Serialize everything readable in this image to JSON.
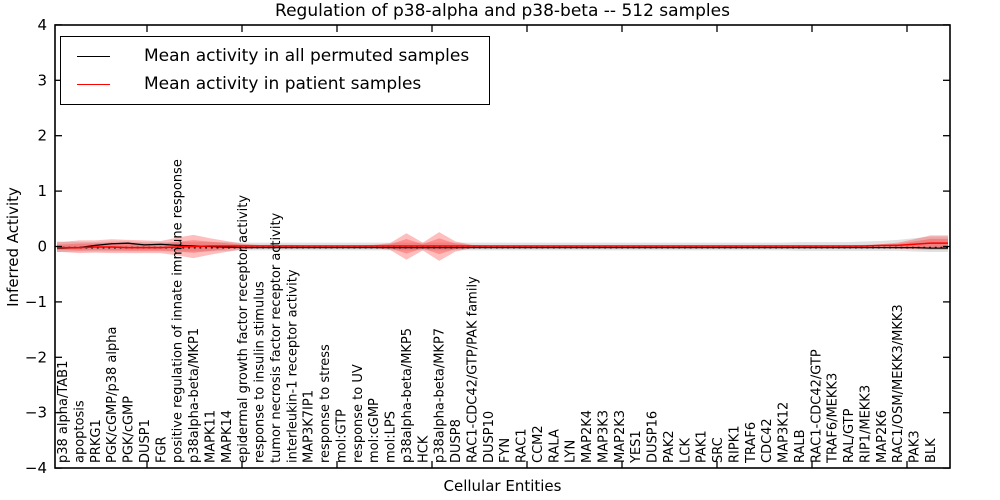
{
  "title": "Regulation of p38-alpha and p38-beta -- 512 samples",
  "chart_data": {
    "type": "line",
    "title": "Regulation of p38-alpha and p38-beta -- 512 samples",
    "xlabel": "Cellular Entities",
    "ylabel": "Inferred Activity",
    "ylim": [
      -4,
      4
    ],
    "yticks": [
      "4",
      "3",
      "2",
      "1",
      "0",
      "−1",
      "−2",
      "−3",
      "−4"
    ],
    "ytick_values": [
      4,
      3,
      2,
      1,
      0,
      -1,
      -2,
      -3,
      -4
    ],
    "grid": false,
    "legend_position": "upper left",
    "categories": [
      "p38 alpha/TAB1",
      "apoptosis",
      "PRKG1",
      "PGK/cGMP/p38 alpha",
      "PGK/cGMP",
      "DUSP1",
      "FGR",
      "positive regulation of innate immune response",
      "p38alpha-beta/MKP1",
      "MAPK11",
      "MAPK14",
      "epidermal growth factor receptor activity",
      "response to insulin stimulus",
      "tumor necrosis factor receptor activity",
      "interleukin-1 receptor activity",
      "MAP3K7IP1",
      "response to stress",
      "mol:GTP",
      "response to UV",
      "mol:cGMP",
      "mol:LPS",
      "p38alpha-beta/MKP5",
      "HCK",
      "p38alpha-beta/MKP7",
      "DUSP8",
      "RAC1-CDC42/GTP/PAK family",
      "DUSP10",
      "FYN",
      "RAC1",
      "CCM2",
      "RALA",
      "LYN",
      "MAP2K4",
      "MAP3K3",
      "MAP2K3",
      "YES1",
      "DUSP16",
      "PAK2",
      "LCK",
      "PAK1",
      "SRC",
      "RIPK1",
      "TRAF6",
      "CDC42",
      "MAP3K12",
      "RALB",
      "RAC1-CDC42/GTP",
      "TRAF6/MEKK3",
      "RAL/GTP",
      "RIP1/MEKK3",
      "MAP2K6",
      "RAC1/OSM/MEKK3/MKK3",
      "PAK3",
      "BLK"
    ],
    "series": [
      {
        "name": "Mean activity in all permuted samples",
        "color": "#000000",
        "style": "solid",
        "values": [
          -0.03,
          -0.02,
          0.02,
          0.05,
          0.06,
          0.03,
          0.04,
          0.02,
          0.01,
          0.0,
          -0.01,
          -0.02,
          -0.02,
          -0.02,
          -0.02,
          -0.02,
          -0.02,
          -0.02,
          -0.02,
          -0.02,
          -0.02,
          -0.02,
          -0.02,
          -0.02,
          -0.02,
          -0.02,
          -0.02,
          -0.02,
          -0.02,
          -0.02,
          -0.02,
          -0.02,
          -0.02,
          -0.02,
          -0.02,
          -0.02,
          -0.02,
          -0.02,
          -0.02,
          -0.02,
          -0.02,
          -0.02,
          -0.02,
          -0.02,
          -0.02,
          -0.02,
          -0.02,
          -0.02,
          -0.02,
          -0.02,
          -0.02,
          -0.02,
          -0.02,
          -0.03
        ]
      },
      {
        "name": "Mean activity in patient samples",
        "color": "#ff0000",
        "style": "solid",
        "values": [
          -0.02,
          -0.02,
          -0.01,
          -0.01,
          -0.02,
          -0.02,
          -0.02,
          -0.01,
          0.0,
          0.01,
          0.01,
          0.01,
          0.01,
          0.01,
          0.01,
          0.01,
          0.01,
          0.01,
          0.01,
          0.01,
          0.01,
          0.01,
          0.01,
          0.01,
          0.01,
          0.01,
          0.01,
          0.01,
          0.01,
          0.01,
          0.01,
          0.01,
          0.01,
          0.01,
          0.01,
          0.01,
          0.01,
          0.01,
          0.01,
          0.01,
          0.01,
          0.01,
          0.01,
          0.01,
          0.01,
          0.01,
          0.01,
          0.01,
          0.01,
          0.01,
          0.02,
          0.02,
          0.04,
          0.06
        ]
      }
    ],
    "bands": [
      {
        "name": "permuted-samples-range",
        "color": "rgba(70,70,70,0.16)",
        "upper": [
          0.09,
          0.08,
          0.08,
          0.09,
          0.09,
          0.08,
          0.08,
          0.08,
          0.08,
          0.08,
          0.08,
          0.07,
          0.07,
          0.07,
          0.07,
          0.07,
          0.07,
          0.07,
          0.07,
          0.07,
          0.07,
          0.07,
          0.07,
          0.07,
          0.07,
          0.07,
          0.07,
          0.07,
          0.07,
          0.07,
          0.07,
          0.07,
          0.07,
          0.07,
          0.07,
          0.07,
          0.07,
          0.07,
          0.07,
          0.07,
          0.07,
          0.07,
          0.07,
          0.07,
          0.07,
          0.08,
          0.08,
          0.08,
          0.08,
          0.09,
          0.1,
          0.12,
          0.15,
          0.18
        ],
        "lower": [
          -0.1,
          -0.09,
          -0.09,
          -0.09,
          -0.09,
          -0.09,
          -0.09,
          -0.09,
          -0.09,
          -0.09,
          -0.08,
          -0.07,
          -0.07,
          -0.07,
          -0.07,
          -0.07,
          -0.07,
          -0.07,
          -0.07,
          -0.07,
          -0.07,
          -0.07,
          -0.07,
          -0.07,
          -0.07,
          -0.07,
          -0.07,
          -0.07,
          -0.07,
          -0.07,
          -0.07,
          -0.07,
          -0.07,
          -0.07,
          -0.07,
          -0.07,
          -0.07,
          -0.07,
          -0.07,
          -0.07,
          -0.07,
          -0.07,
          -0.07,
          -0.07,
          -0.07,
          -0.08,
          -0.08,
          -0.08,
          -0.08,
          -0.08,
          -0.08,
          -0.08,
          -0.09,
          -0.1
        ]
      },
      {
        "name": "patient-samples-range",
        "color": "rgba(255,40,40,0.30)",
        "upper": [
          0.08,
          0.11,
          0.11,
          0.13,
          0.12,
          0.11,
          0.1,
          0.16,
          0.21,
          0.15,
          0.1,
          0.05,
          0.03,
          0.03,
          0.03,
          0.02,
          0.02,
          0.02,
          0.02,
          0.03,
          0.06,
          0.24,
          0.07,
          0.26,
          0.09,
          0.03,
          0.02,
          0.02,
          0.02,
          0.02,
          0.02,
          0.02,
          0.02,
          0.02,
          0.02,
          0.02,
          0.02,
          0.02,
          0.02,
          0.02,
          0.02,
          0.02,
          0.02,
          0.02,
          0.02,
          0.02,
          0.02,
          0.02,
          0.02,
          0.03,
          0.04,
          0.07,
          0.13,
          0.2
        ],
        "lower": [
          -0.1,
          -0.12,
          -0.11,
          -0.12,
          -0.12,
          -0.12,
          -0.12,
          -0.16,
          -0.21,
          -0.15,
          -0.1,
          -0.05,
          -0.03,
          -0.03,
          -0.03,
          -0.02,
          -0.02,
          -0.02,
          -0.02,
          -0.03,
          -0.06,
          -0.24,
          -0.07,
          -0.26,
          -0.09,
          -0.03,
          -0.02,
          -0.02,
          -0.02,
          -0.02,
          -0.02,
          -0.02,
          -0.02,
          -0.02,
          -0.02,
          -0.02,
          -0.02,
          -0.02,
          -0.02,
          -0.02,
          -0.02,
          -0.02,
          -0.02,
          -0.02,
          -0.02,
          -0.02,
          -0.02,
          -0.02,
          -0.02,
          -0.03,
          -0.03,
          -0.04,
          -0.05,
          -0.06
        ]
      }
    ],
    "zero_line": {
      "y": -0.02,
      "color": "#000000",
      "style": "dotted"
    }
  }
}
